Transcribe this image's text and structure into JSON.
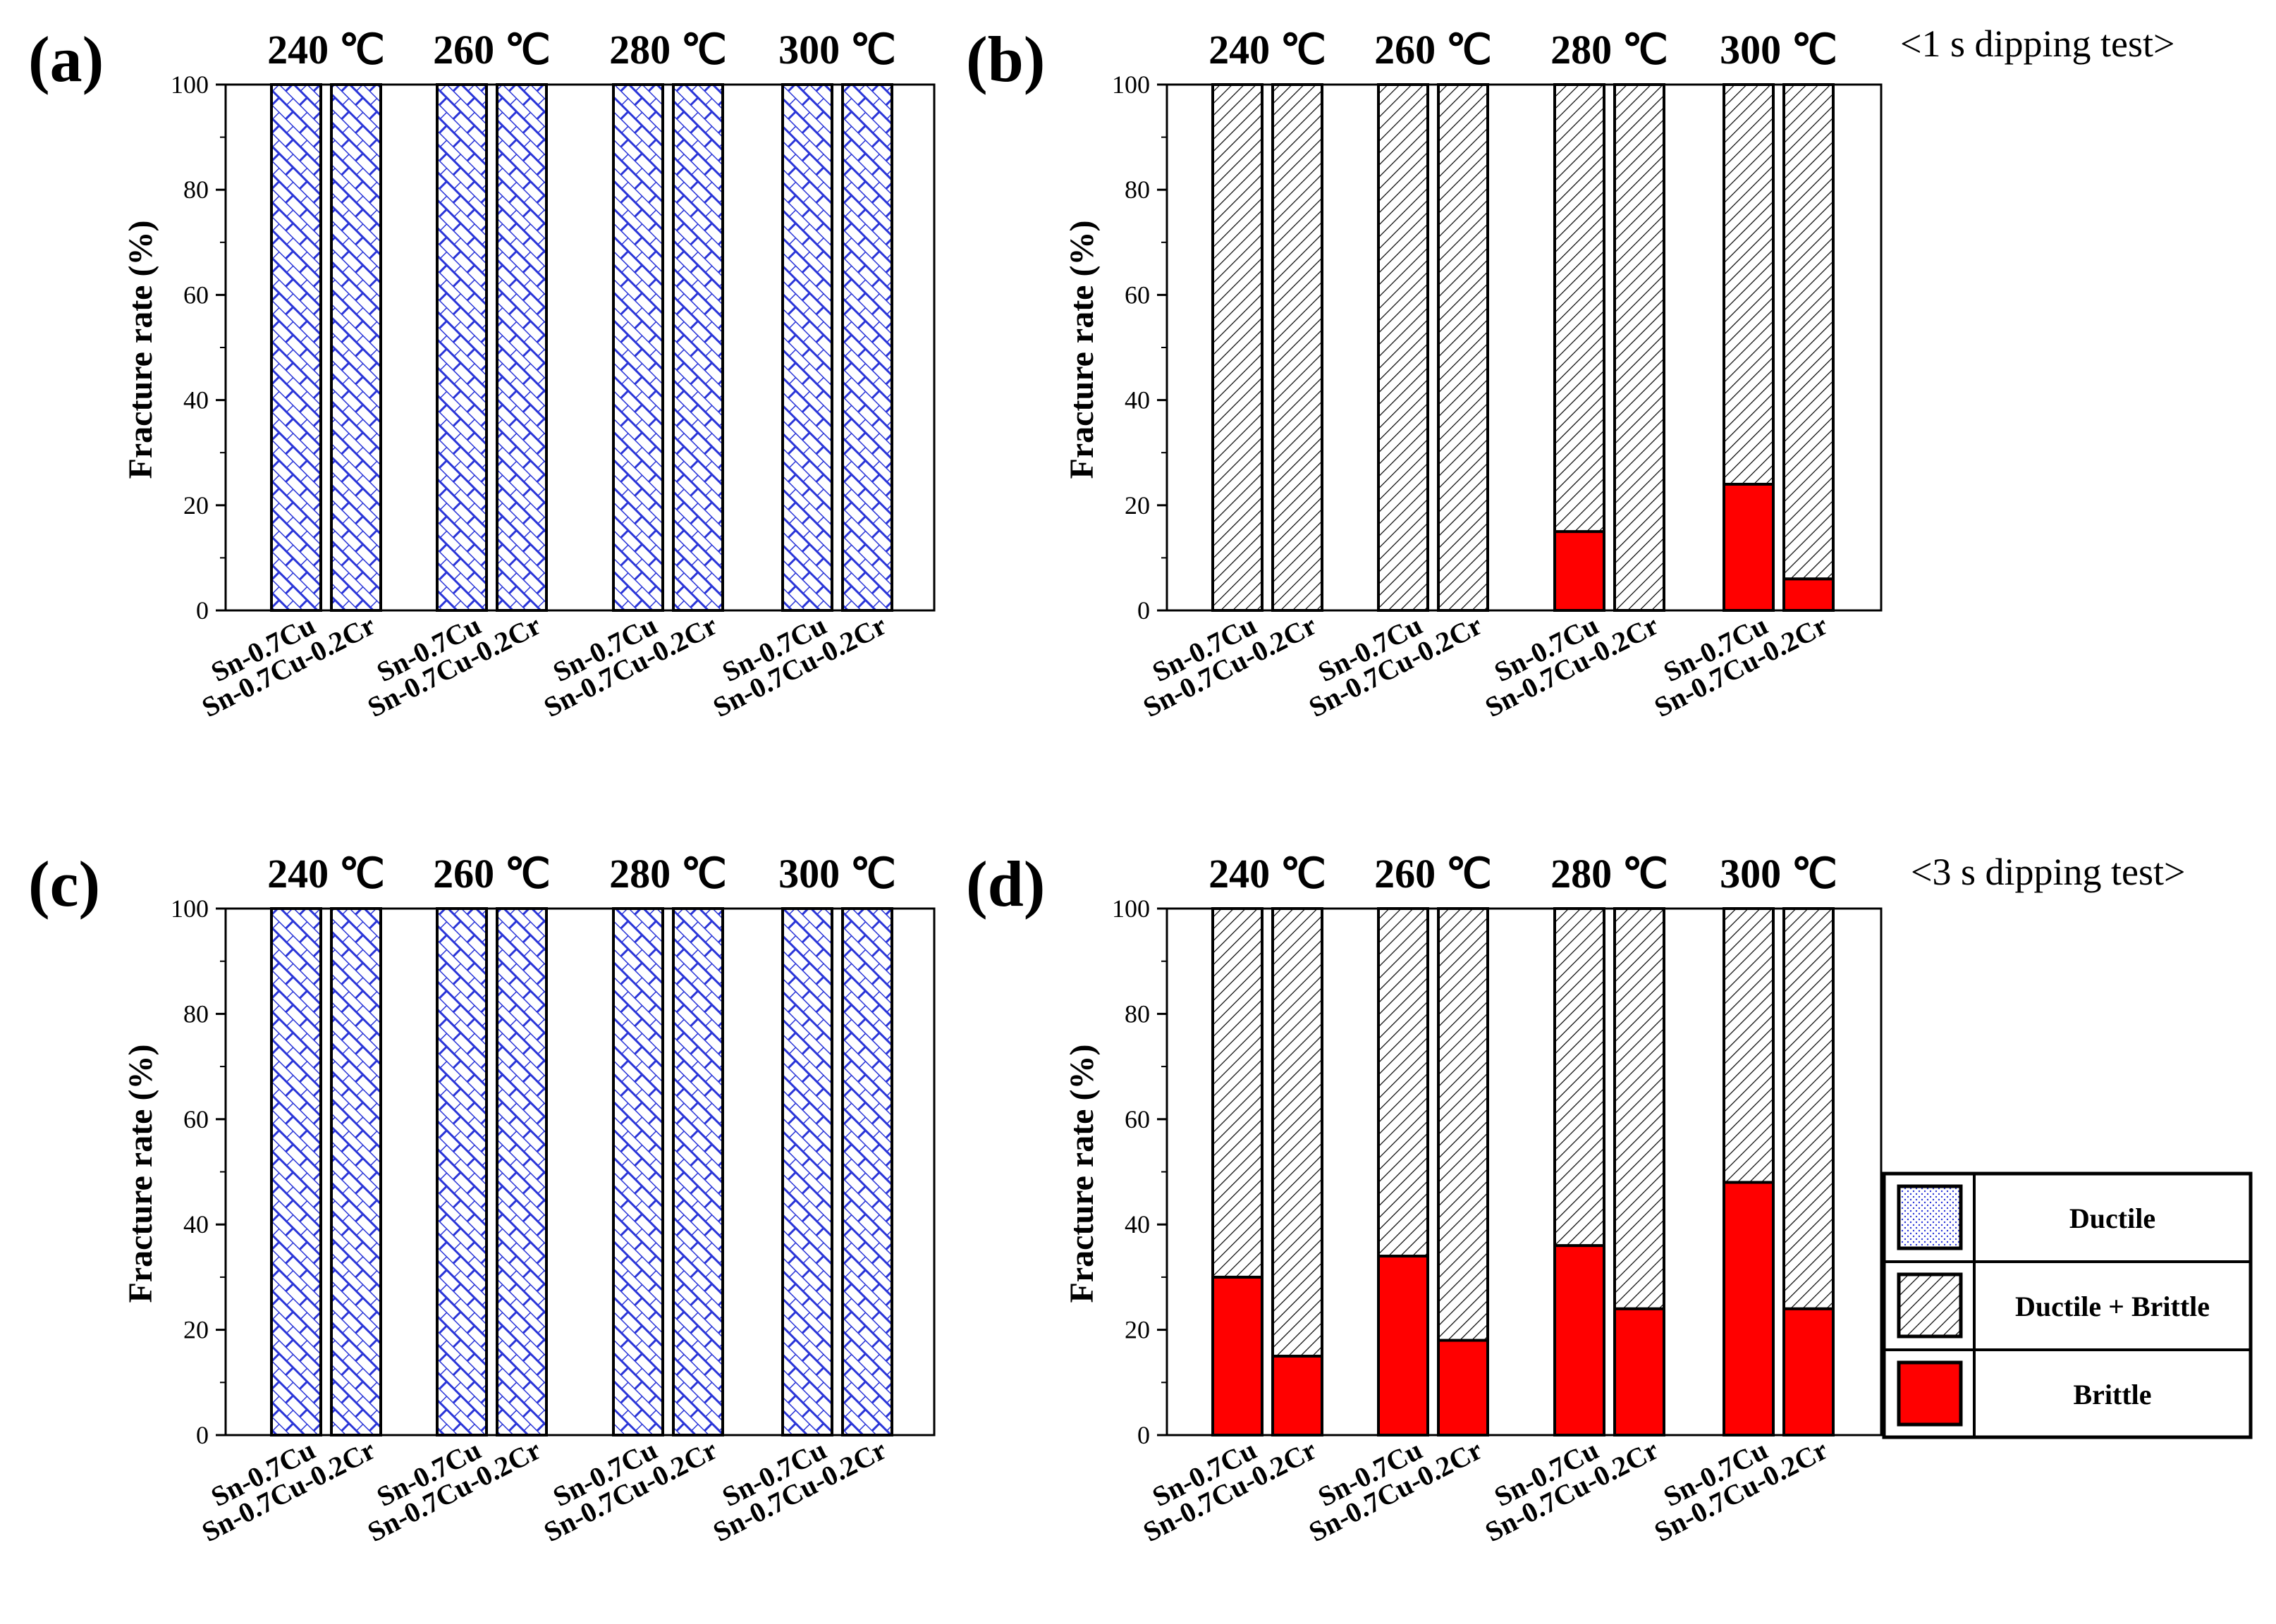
{
  "figure": {
    "notes": {
      "b": "<1 s dipping test>",
      "d": "<3 s dipping test>"
    }
  },
  "colors": {
    "ductile": "#1f2bd6",
    "brittle": "#ff0000",
    "ductile_brittle": "#000000"
  },
  "legend": {
    "items": [
      {
        "key": "ductile",
        "label": "Ductile"
      },
      {
        "key": "ductile_brittle",
        "label": "Ductile + Brittle"
      },
      {
        "key": "brittle",
        "label": "Brittle"
      }
    ]
  },
  "chart_data": [
    {
      "panel": "(a)",
      "type": "bar",
      "stacked": true,
      "groups": [
        "240 ℃",
        "260 ℃",
        "280 ℃",
        "300 ℃"
      ],
      "categories": [
        "Sn-0.7Cu",
        "Sn-0.7Cu-0.2Cr"
      ],
      "series": [
        {
          "name": "Ductile",
          "values": [
            [
              100,
              100
            ],
            [
              100,
              100
            ],
            [
              100,
              100
            ],
            [
              100,
              100
            ]
          ]
        }
      ],
      "ylabel": "Fracture rate (%)",
      "ylim": [
        0,
        100
      ],
      "yticks": [
        0,
        20,
        40,
        60,
        80,
        100
      ]
    },
    {
      "panel": "(b)",
      "type": "bar",
      "stacked": true,
      "groups": [
        "240 ℃",
        "260 ℃",
        "280 ℃",
        "300 ℃"
      ],
      "categories": [
        "Sn-0.7Cu",
        "Sn-0.7Cu-0.2Cr"
      ],
      "series": [
        {
          "name": "Brittle",
          "values": [
            [
              0,
              0
            ],
            [
              0,
              0
            ],
            [
              15,
              0
            ],
            [
              24,
              6
            ]
          ]
        },
        {
          "name": "Ductile + Brittle",
          "values": [
            [
              100,
              100
            ],
            [
              100,
              100
            ],
            [
              85,
              100
            ],
            [
              76,
              94
            ]
          ]
        }
      ],
      "ylabel": "Fracture rate (%)",
      "ylim": [
        0,
        100
      ],
      "yticks": [
        0,
        20,
        40,
        60,
        80,
        100
      ],
      "note": "<1 s dipping test>"
    },
    {
      "panel": "(c)",
      "type": "bar",
      "stacked": true,
      "groups": [
        "240 ℃",
        "260 ℃",
        "280 ℃",
        "300 ℃"
      ],
      "categories": [
        "Sn-0.7Cu",
        "Sn-0.7Cu-0.2Cr"
      ],
      "series": [
        {
          "name": "Ductile",
          "values": [
            [
              100,
              100
            ],
            [
              100,
              100
            ],
            [
              100,
              100
            ],
            [
              100,
              100
            ]
          ]
        }
      ],
      "ylabel": "Fracture rate (%)",
      "ylim": [
        0,
        100
      ],
      "yticks": [
        0,
        20,
        40,
        60,
        80,
        100
      ]
    },
    {
      "panel": "(d)",
      "type": "bar",
      "stacked": true,
      "groups": [
        "240 ℃",
        "260 ℃",
        "280 ℃",
        "300 ℃"
      ],
      "categories": [
        "Sn-0.7Cu",
        "Sn-0.7Cu-0.2Cr"
      ],
      "series": [
        {
          "name": "Brittle",
          "values": [
            [
              30,
              15
            ],
            [
              34,
              18
            ],
            [
              36,
              24
            ],
            [
              48,
              24
            ]
          ]
        },
        {
          "name": "Ductile + Brittle",
          "values": [
            [
              70,
              85
            ],
            [
              66,
              82
            ],
            [
              64,
              76
            ],
            [
              52,
              76
            ]
          ]
        }
      ],
      "ylabel": "Fracture rate (%)",
      "ylim": [
        0,
        100
      ],
      "yticks": [
        0,
        20,
        40,
        60,
        80,
        100
      ],
      "note": "<3 s dipping test>"
    }
  ]
}
